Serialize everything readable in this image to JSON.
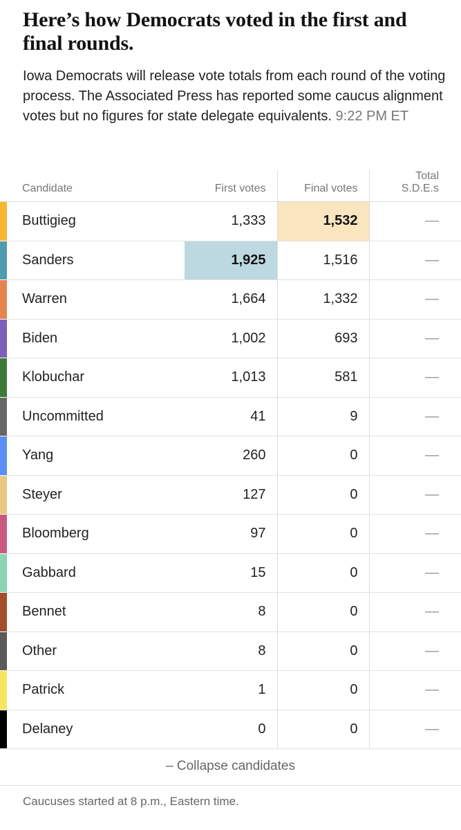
{
  "headline": "Here’s how Democrats voted in the first and final rounds.",
  "summary": "Iowa Democrats will release vote totals from each round of the voting process. The Associated Press has reported some caucus alignment votes but no figures for state delegate equivalents.",
  "timestamp": "9:22 PM ET",
  "table": {
    "headers": {
      "candidate": "Candidate",
      "first": "First votes",
      "final": "Final votes",
      "sde_line1": "Total",
      "sde_line2": "S.D.E.s"
    },
    "rows": [
      {
        "name": "Buttigieg",
        "first": "1,333",
        "final": "1,532",
        "sde": "—",
        "color": "#f7b733",
        "winner": "final",
        "highlight": "#f9e5be"
      },
      {
        "name": "Sanders",
        "first": "1,925",
        "final": "1,516",
        "sde": "—",
        "color": "#4f9bb0",
        "winner": "first",
        "highlight": "#bcd9e1"
      },
      {
        "name": "Warren",
        "first": "1,664",
        "final": "1,332",
        "sde": "—",
        "color": "#e3854f",
        "winner": "",
        "highlight": ""
      },
      {
        "name": "Biden",
        "first": "1,002",
        "final": "693",
        "sde": "—",
        "color": "#7b5fb8",
        "winner": "",
        "highlight": ""
      },
      {
        "name": "Klobuchar",
        "first": "1,013",
        "final": "581",
        "sde": "—",
        "color": "#3d7a3a",
        "winner": "",
        "highlight": ""
      },
      {
        "name": "Uncommitted",
        "first": "41",
        "final": "9",
        "sde": "—",
        "color": "#666666",
        "winner": "",
        "highlight": ""
      },
      {
        "name": "Yang",
        "first": "260",
        "final": "0",
        "sde": "—",
        "color": "#5b8ff5",
        "winner": "",
        "highlight": ""
      },
      {
        "name": "Steyer",
        "first": "127",
        "final": "0",
        "sde": "—",
        "color": "#e6c883",
        "winner": "",
        "highlight": ""
      },
      {
        "name": "Bloomberg",
        "first": "97",
        "final": "0",
        "sde": "—",
        "color": "#c75b7d",
        "winner": "",
        "highlight": ""
      },
      {
        "name": "Gabbard",
        "first": "15",
        "final": "0",
        "sde": "—",
        "color": "#8cd4b1",
        "winner": "",
        "highlight": ""
      },
      {
        "name": "Bennet",
        "first": "8",
        "final": "0",
        "sde": "—",
        "color": "#a34e2b",
        "winner": "",
        "highlight": ""
      },
      {
        "name": "Other",
        "first": "8",
        "final": "0",
        "sde": "—",
        "color": "#5a5a5a",
        "winner": "",
        "highlight": ""
      },
      {
        "name": "Patrick",
        "first": "1",
        "final": "0",
        "sde": "—",
        "color": "#f8e55e",
        "winner": "",
        "highlight": ""
      },
      {
        "name": "Delaney",
        "first": "0",
        "final": "0",
        "sde": "—",
        "color": "#000000",
        "winner": "",
        "highlight": ""
      }
    ]
  },
  "collapse_label": "– Collapse candidates",
  "footnote": "Caucuses started at 8 p.m., Eastern time."
}
